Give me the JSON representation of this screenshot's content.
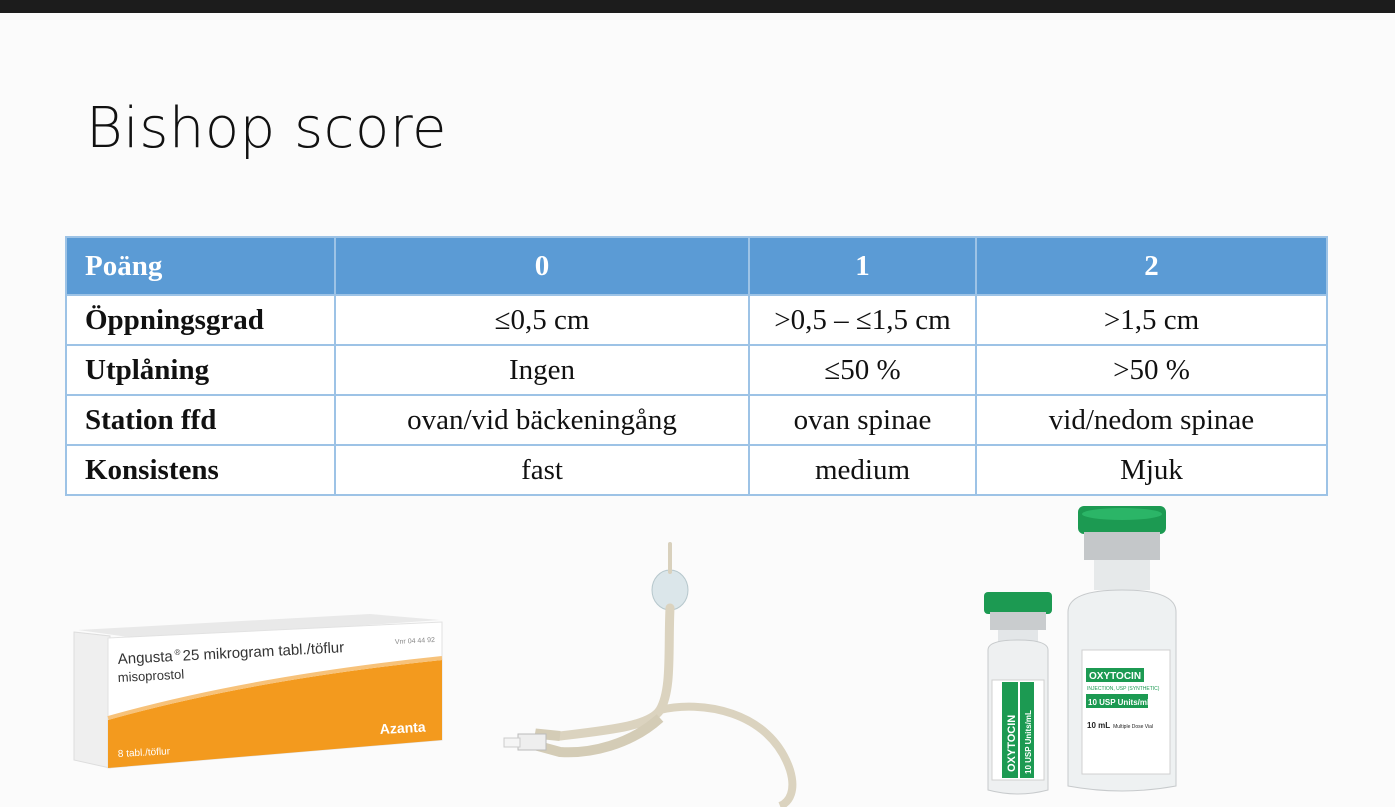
{
  "slide": {
    "title": "Bishop score"
  },
  "table": {
    "headers": [
      "Poäng",
      "0",
      "1",
      "2"
    ],
    "rows": [
      [
        "Öppningsgrad",
        "≤0,5 cm",
        ">0,5 – ≤1,5 cm",
        ">1,5 cm"
      ],
      [
        "Utplåning",
        "Ingen",
        "≤50 %",
        ">50 %"
      ],
      [
        "Station ffd",
        "ovan/vid bäckeningång",
        "ovan spinae",
        "vid/nedom spinae"
      ],
      [
        "Konsistens",
        "fast",
        "medium",
        "Mjuk"
      ]
    ]
  },
  "images": {
    "angusta_box": {
      "product_name": "Angusta",
      "strength_text": "25 mikrogram tabl./töflur",
      "substance": "misoprostol",
      "count": "8 tabl./töflur",
      "brand": "Azanta",
      "vnr": "Vnr 04 44 92"
    },
    "oxytocin_small": {
      "label": "OXYTOCIN",
      "strength": "10 USP Units/mL"
    },
    "oxytocin_large": {
      "label": "OXYTOCIN",
      "subtitle": "INJECTION, USP (SYNTHETIC)",
      "strength": "10 USP Units/mL",
      "volume": "10 mL",
      "note": "Multiple Dose Vial"
    }
  },
  "colors": {
    "header_bg": "#5b9bd5",
    "border": "#9dc3e6",
    "angusta_orange": "#f39a1e",
    "oxytocin_green": "#1c9a52"
  }
}
